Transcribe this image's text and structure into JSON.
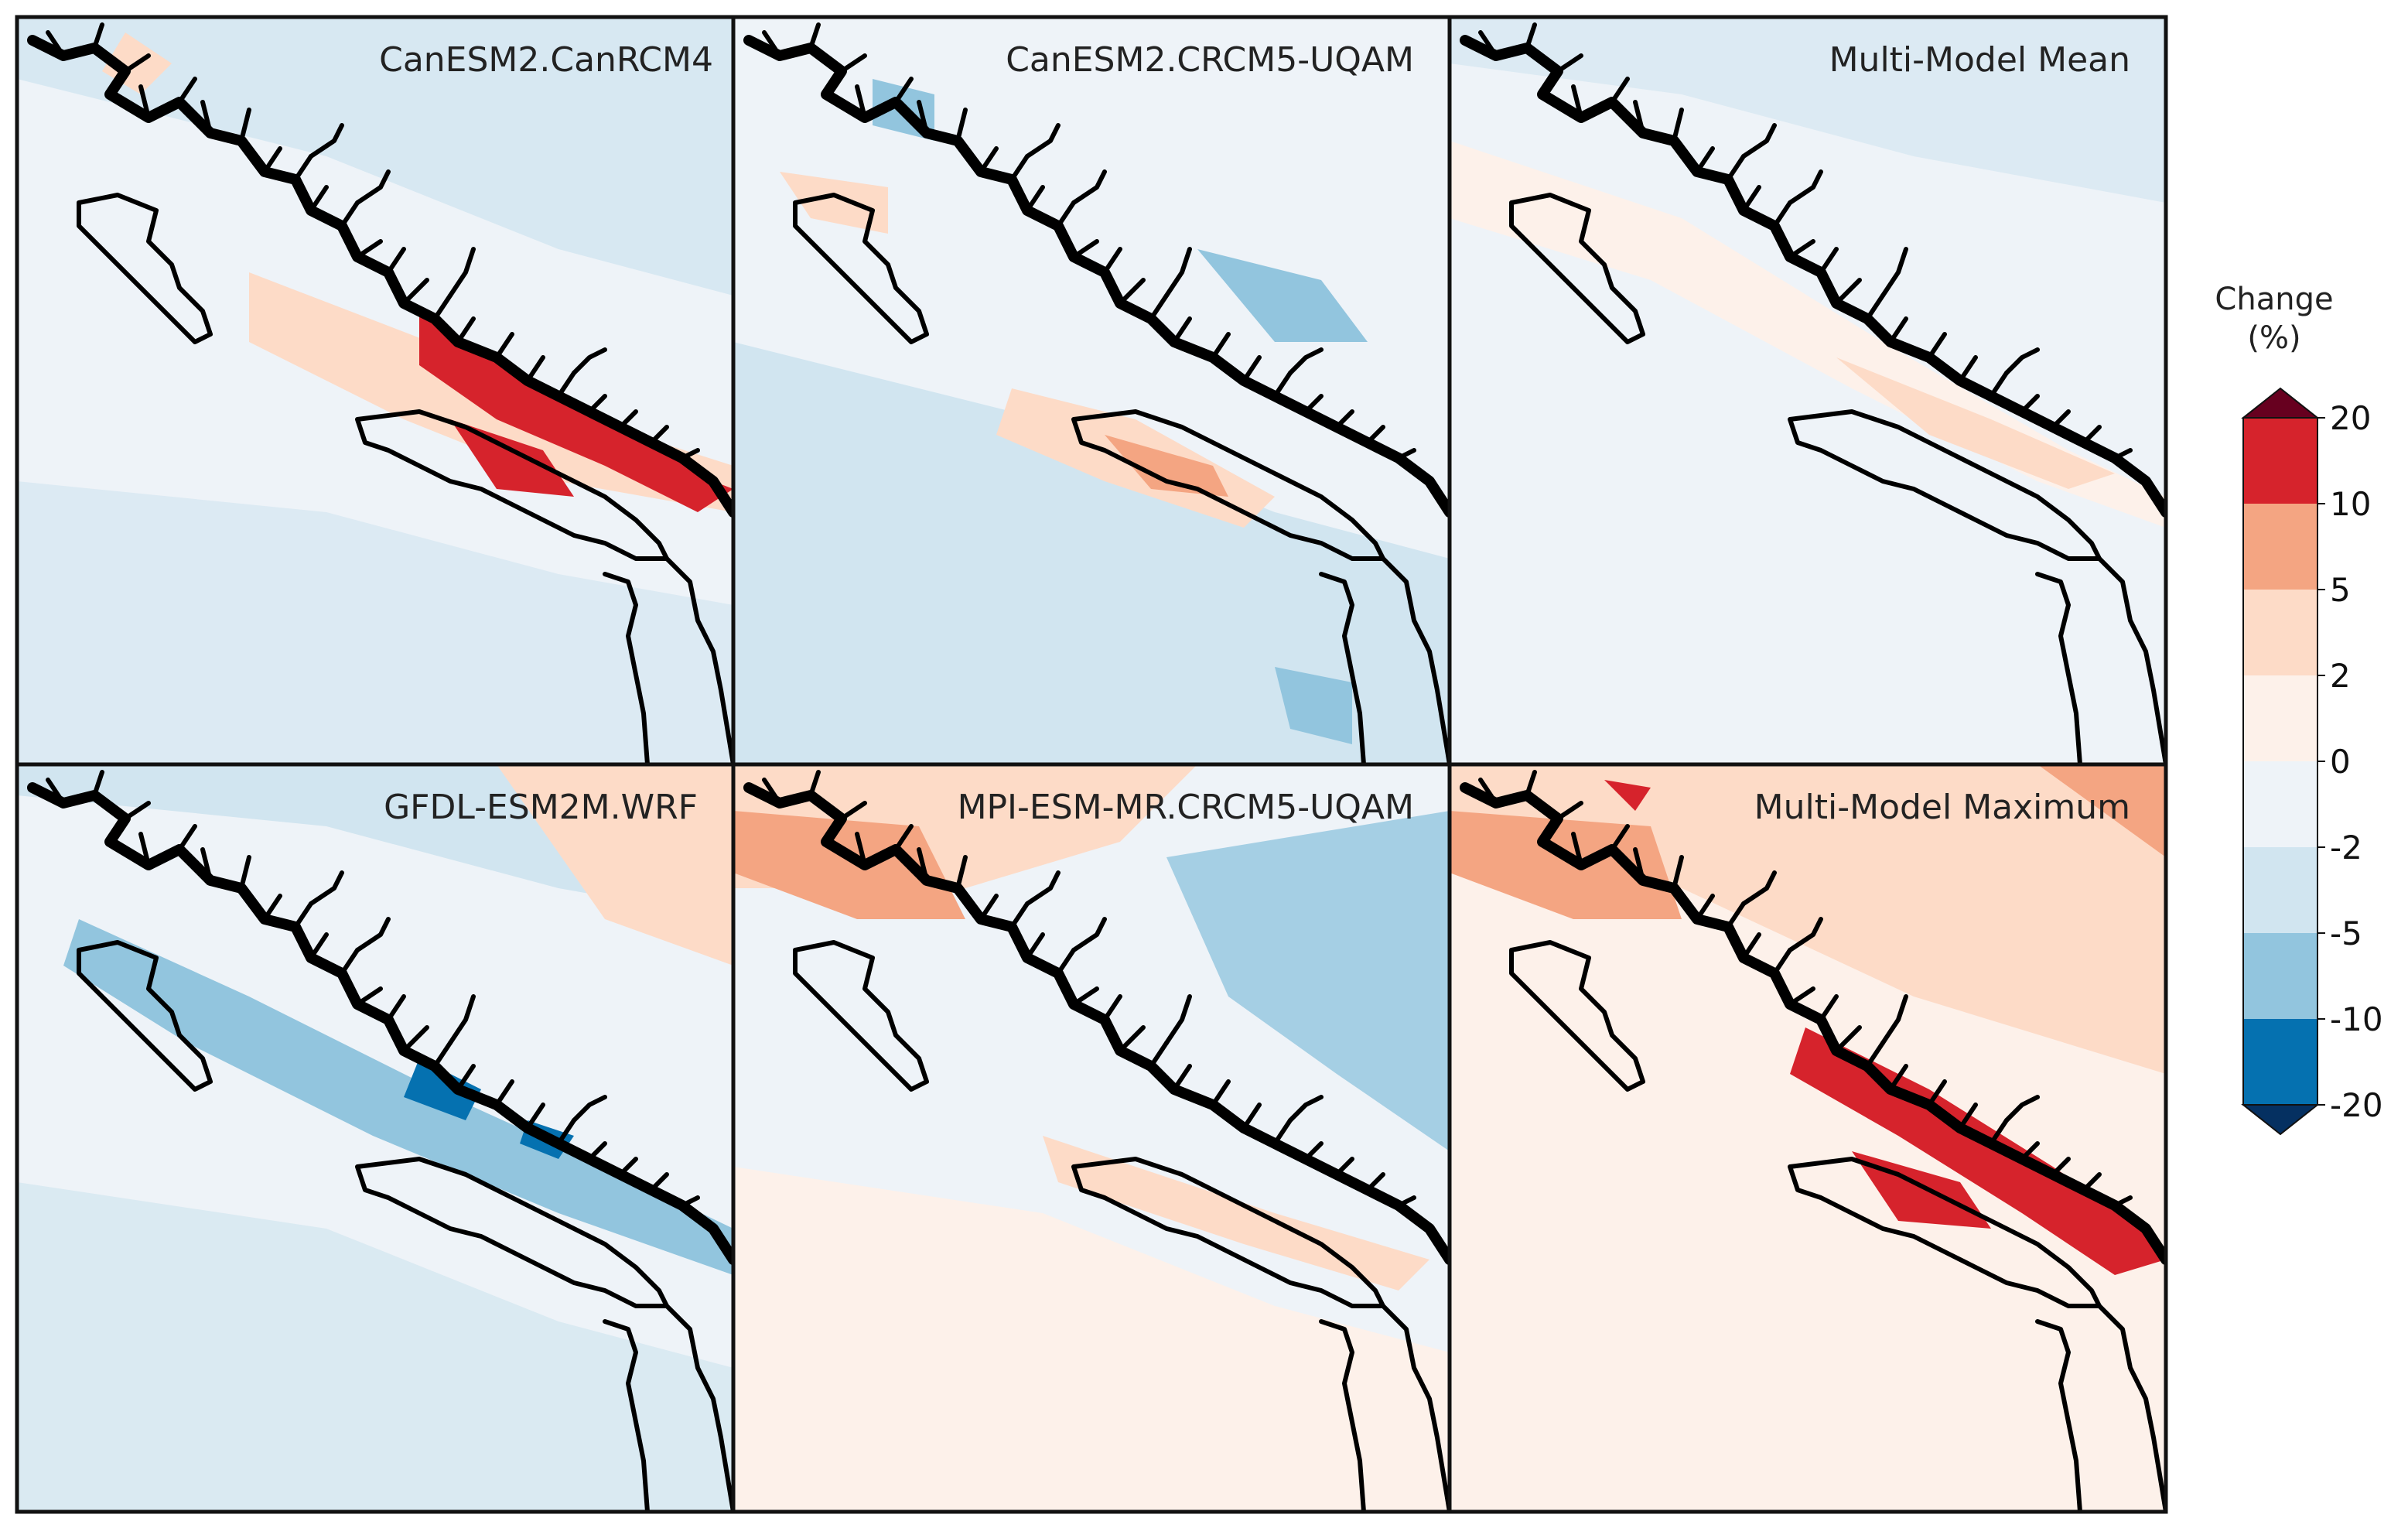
{
  "panels": [
    {
      "title": "CanESM2.CanRCM4"
    },
    {
      "title": "CanESM2.CRCM5-UQAM"
    },
    {
      "title": "Multi-Model Mean"
    },
    {
      "title": "GFDL-ESM2M.WRF"
    },
    {
      "title": "MPI-ESM-MR.CRCM5-UQAM"
    },
    {
      "title": "Multi-Model Maximum"
    }
  ],
  "colorbar": {
    "title_line1": "Change",
    "title_line2": "(%)",
    "ticks": [
      "20",
      "10",
      "5",
      "2",
      "0",
      "-2",
      "-5",
      "-10",
      "-20"
    ],
    "bins": [
      {
        "range": ">20",
        "color": "#67001f"
      },
      {
        "range": "10 to 20",
        "color": "#d6232c"
      },
      {
        "range": "5 to 10",
        "color": "#f4a582"
      },
      {
        "range": "2 to 5",
        "color": "#fddbc7"
      },
      {
        "range": "0 to 2",
        "color": "#fdf1ea"
      },
      {
        "range": "-2 to 0",
        "color": "#eef3f8"
      },
      {
        "range": "-5 to -2",
        "color": "#d1e5f0"
      },
      {
        "range": "-10 to -5",
        "color": "#92c5de"
      },
      {
        "range": "-20 to -10",
        "color": "#0571b0"
      },
      {
        "range": "<-20",
        "color": "#053061"
      }
    ]
  }
}
